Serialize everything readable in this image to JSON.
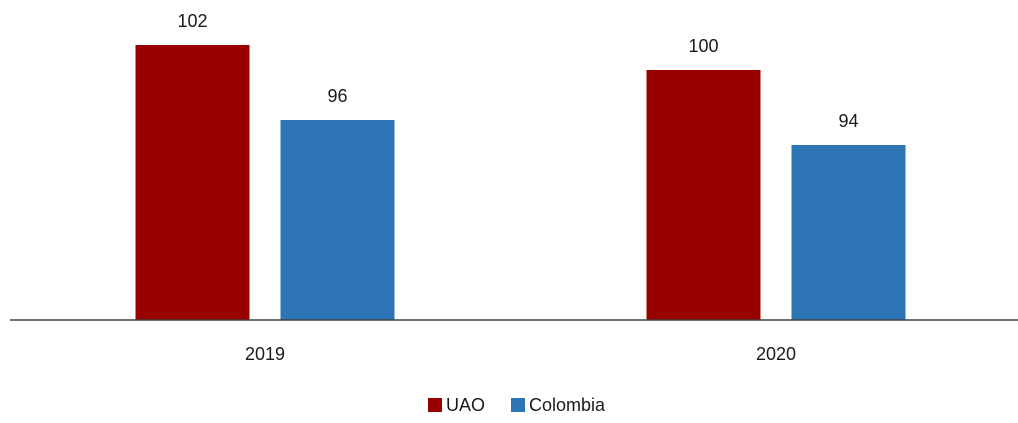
{
  "chart_data": {
    "type": "bar",
    "categories": [
      "2019",
      "2020"
    ],
    "series": [
      {
        "name": "UAO",
        "values": [
          102,
          100
        ],
        "color": "#990000"
      },
      {
        "name": "Colombia",
        "values": [
          96,
          94
        ],
        "color": "#2E75B6"
      }
    ],
    "title": "",
    "xlabel": "",
    "ylabel": "",
    "ylim": [
      80,
      104
    ],
    "grid": false,
    "legend_position": "bottom-center",
    "data_labels": true
  }
}
